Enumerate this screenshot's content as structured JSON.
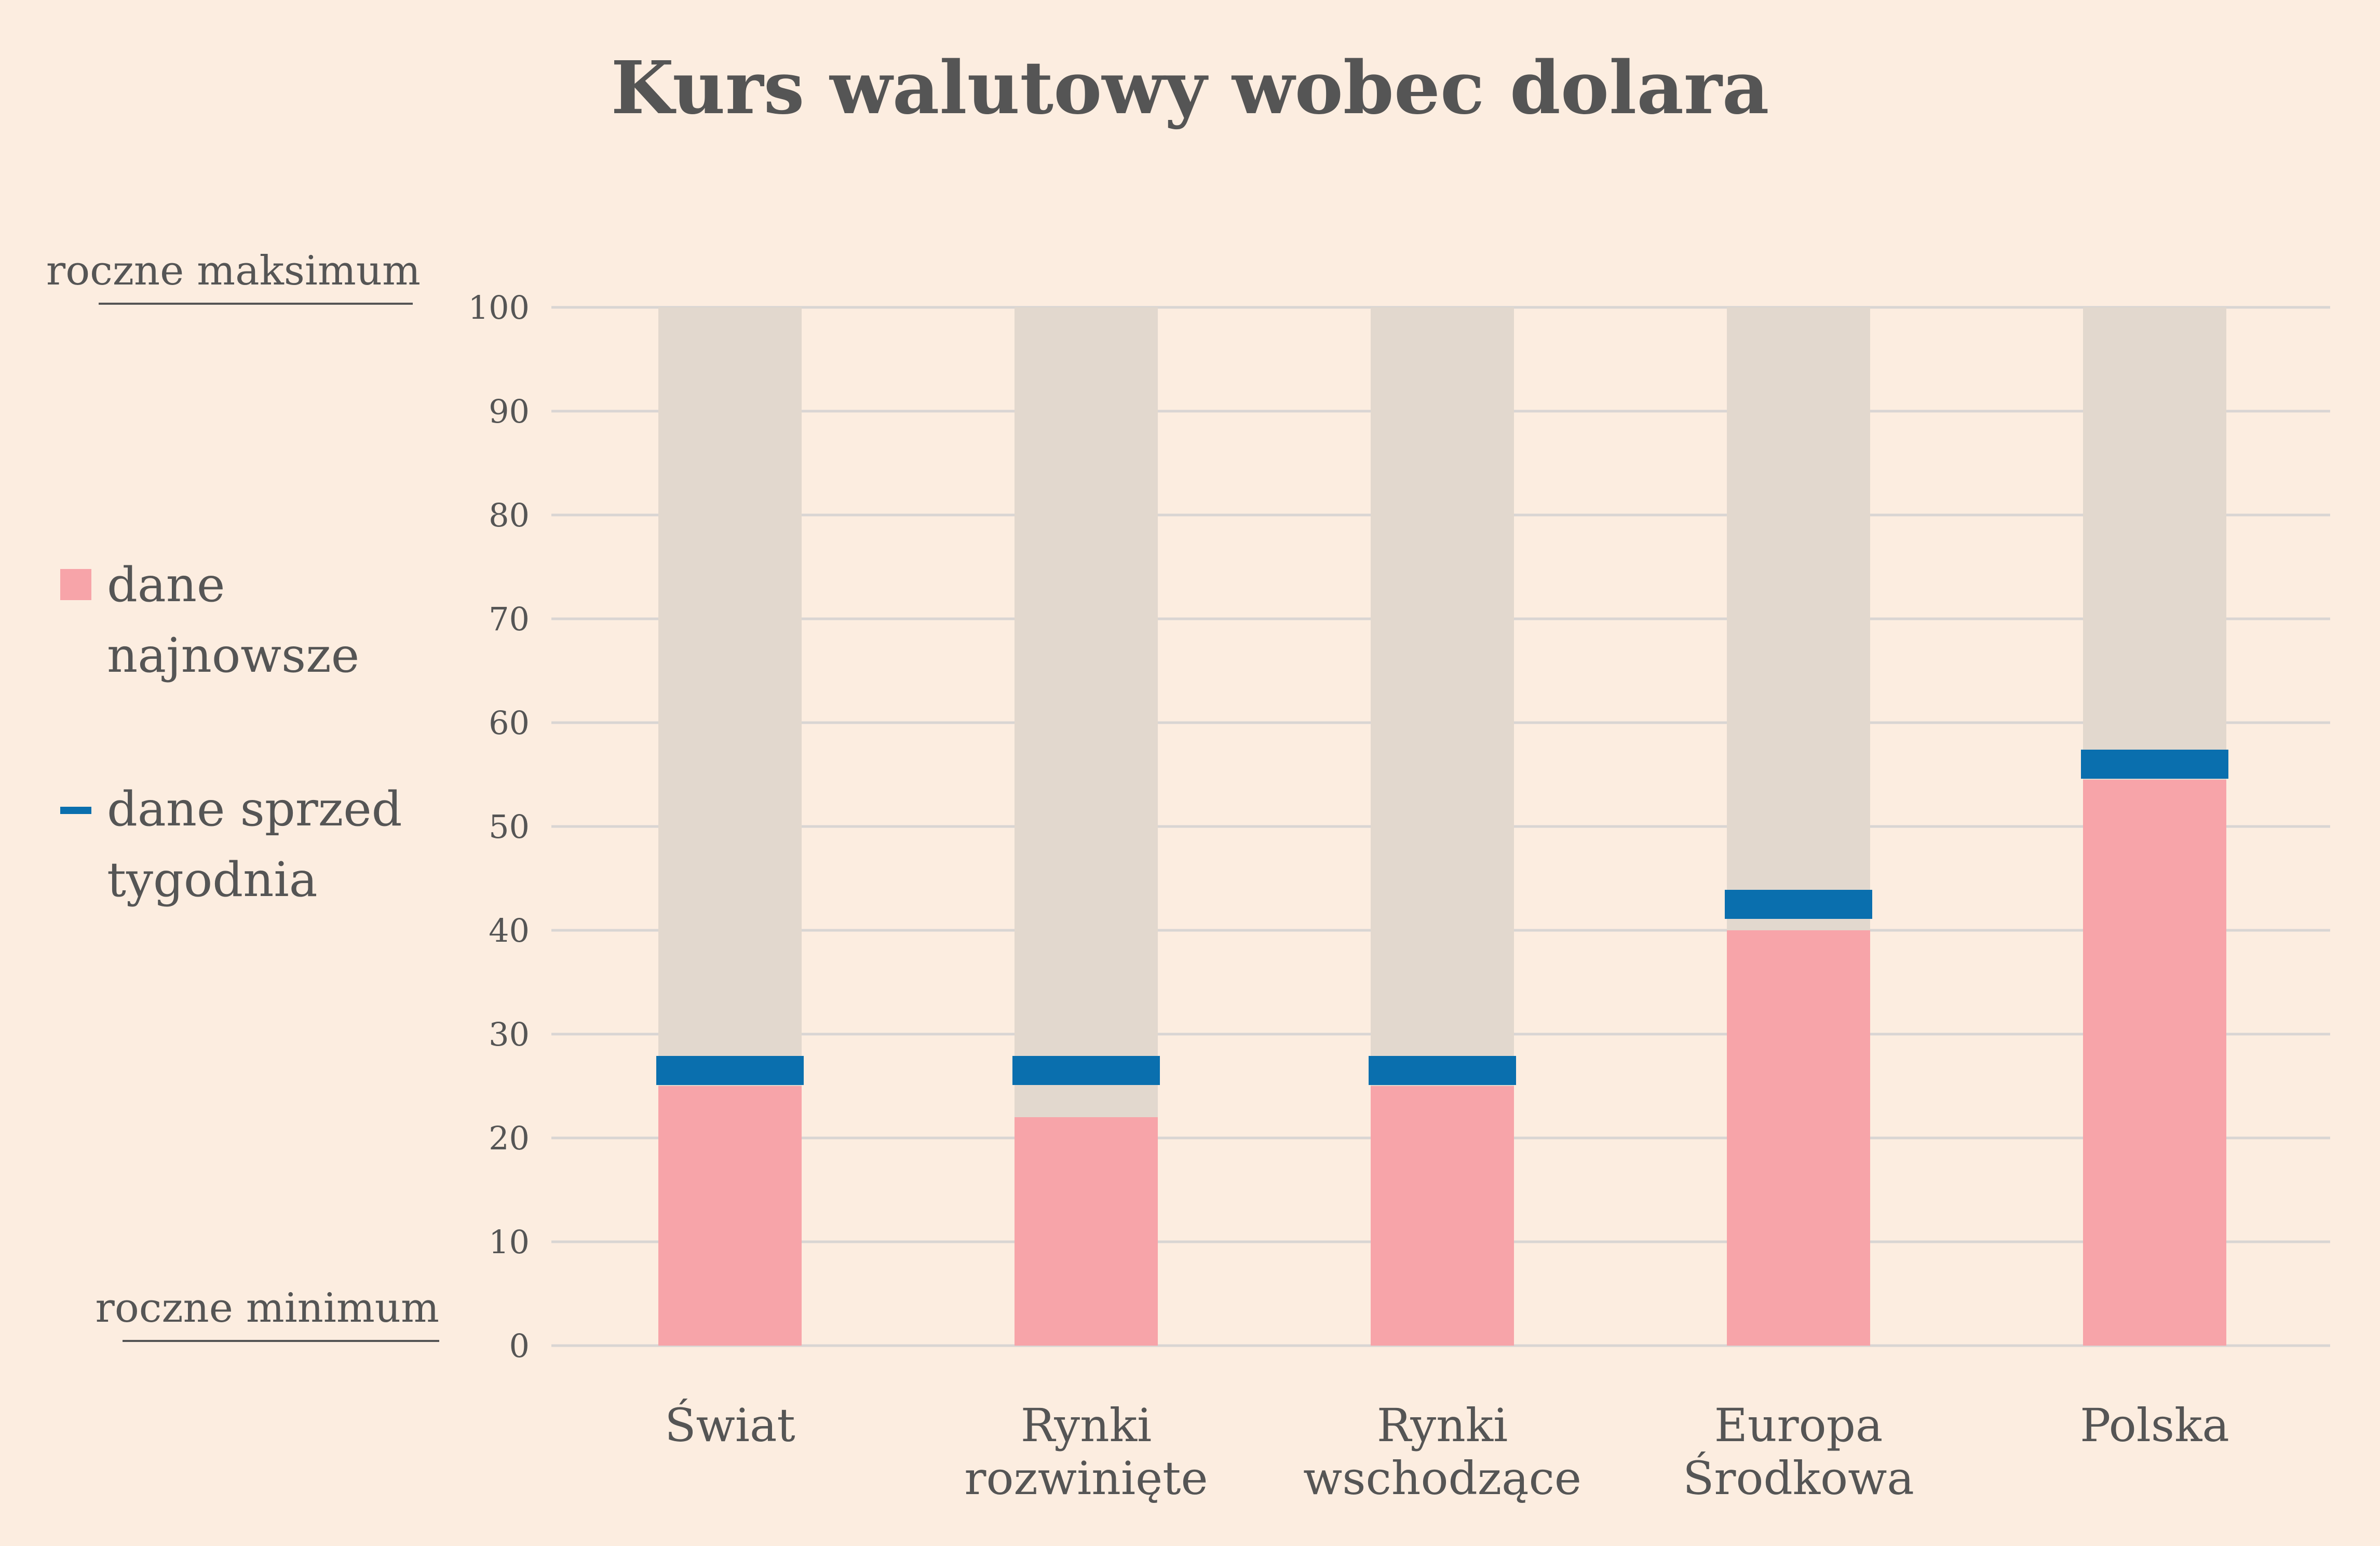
{
  "chart_data": {
    "type": "bar",
    "title": "Kurs walutowy wobec dolara",
    "categories": [
      [
        "Świat"
      ],
      [
        "Rynki",
        "rozwinięte"
      ],
      [
        "Rynki",
        "wschodzące"
      ],
      [
        "Europa",
        "Środkowa"
      ],
      [
        "Polska"
      ]
    ],
    "series": [
      {
        "name": "dane najnowsze",
        "values": [
          25,
          22,
          25,
          40,
          54.5
        ]
      },
      {
        "name": "dane sprzed tygodnia",
        "values": [
          26.5,
          26.5,
          26.5,
          42.5,
          56
        ]
      }
    ],
    "range_max": 100,
    "ylim": [
      0,
      100
    ],
    "yticks": [
      0,
      10,
      20,
      30,
      40,
      50,
      60,
      70,
      80,
      90,
      100
    ],
    "y_max_label": "roczne maksimum",
    "y_min_label": "roczne minimum",
    "legend": {
      "placement": "left",
      "items": [
        {
          "lines": [
            "dane",
            "najnowsze"
          ],
          "marker": "square"
        },
        {
          "lines": [
            "dane sprzed",
            "tygodnia"
          ],
          "marker": "dash"
        }
      ]
    },
    "grid": true,
    "colors": {
      "background": "#FCEDE0",
      "range": "#E2D8CE",
      "latest": "#F7A4A9",
      "week_ago": "#0A6FAE",
      "grid": "#D9D5D3",
      "text": "#555555"
    }
  }
}
